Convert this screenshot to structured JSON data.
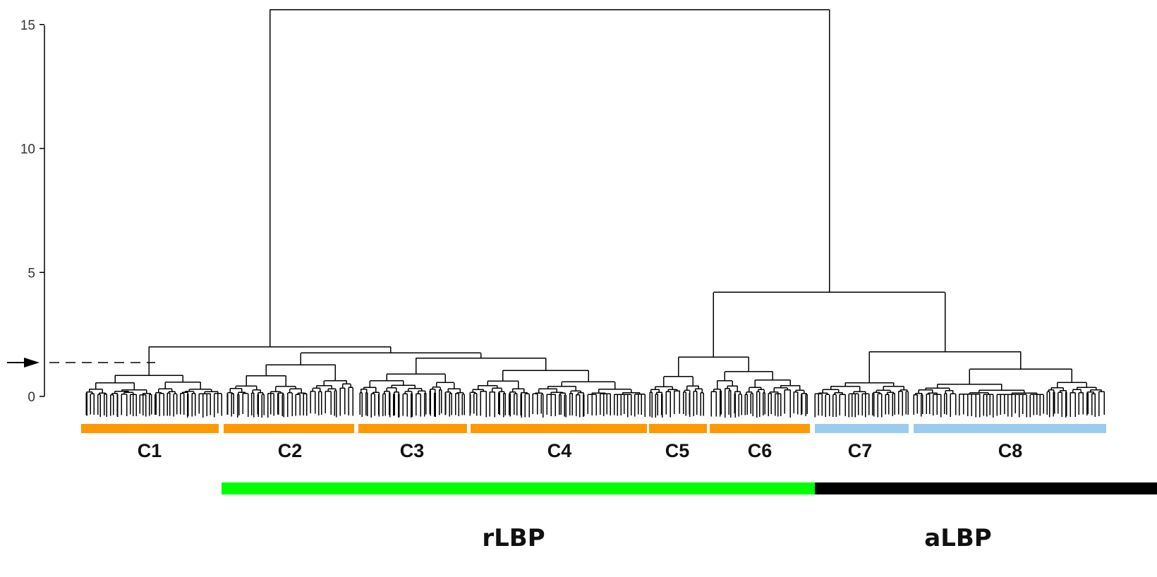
{
  "axis": {
    "ticks": [
      "0",
      "5",
      "10",
      "15"
    ],
    "tick_values": [
      0,
      5,
      10,
      15
    ],
    "ylim": [
      0,
      15.6
    ]
  },
  "cut_height": 1.3,
  "clusters": [
    {
      "label": "C1",
      "color": "#FF9900"
    },
    {
      "label": "C2",
      "color": "#FF9900"
    },
    {
      "label": "C3",
      "color": "#FF9900"
    },
    {
      "label": "C4",
      "color": "#FF9900"
    },
    {
      "label": "C5",
      "color": "#FF9900"
    },
    {
      "label": "C6",
      "color": "#FF9900"
    },
    {
      "label": "C7",
      "color": "#99CCEE"
    },
    {
      "label": "C8",
      "color": "#99CCEE"
    }
  ],
  "groups": [
    {
      "label": "rLBP",
      "color": "#00FF00"
    },
    {
      "label": "aLBP",
      "color": "#000000"
    }
  ],
  "merge_heights": {
    "root": 15.6,
    "rLBP_C1_rest": 2.0,
    "C2_to_C4": 1.75,
    "C3_C4": 1.55,
    "C5_to_C8": 4.2,
    "C5_C6": 1.58,
    "C7_C8": 1.8
  }
}
